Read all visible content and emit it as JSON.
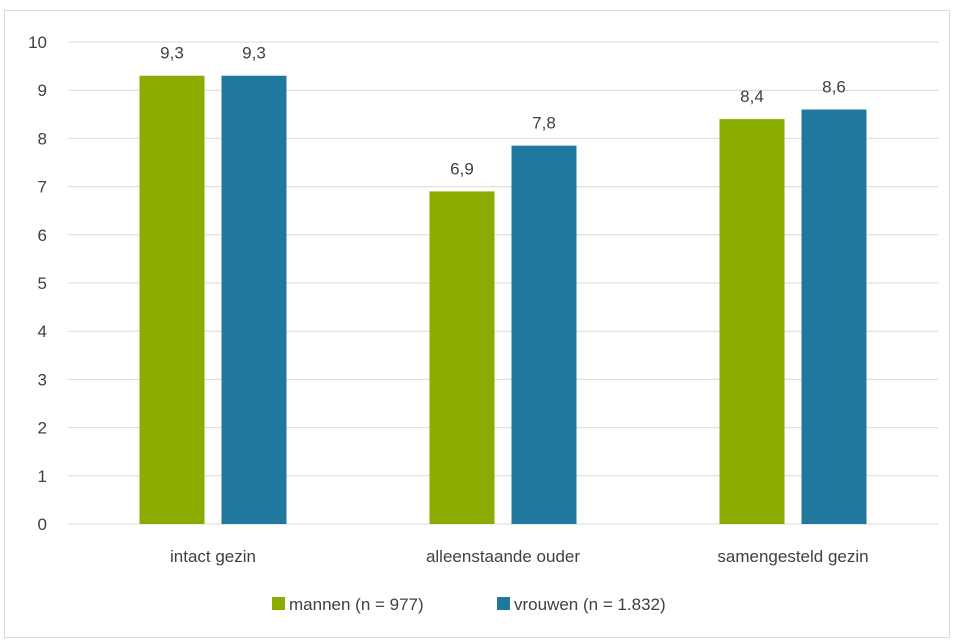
{
  "chart_data": {
    "type": "bar",
    "categories": [
      "intact gezin",
      "alleenstaande ouder",
      "samengesteld gezin"
    ],
    "series": [
      {
        "name": "mannen (n = 977)",
        "color": "#8aab00",
        "values": [
          9.3,
          6.9,
          8.4
        ],
        "labels": [
          "9,3",
          "6,9",
          "8,4"
        ]
      },
      {
        "name": "vrouwen (n = 1.832)",
        "color": "#21789e",
        "values": [
          9.3,
          7.85,
          8.6
        ],
        "labels": [
          "9,3",
          "7,8",
          "8,6"
        ]
      }
    ],
    "ylim": [
      0,
      10
    ],
    "yticks": [
      "0",
      "1",
      "2",
      "3",
      "4",
      "5",
      "6",
      "7",
      "8",
      "9",
      "10"
    ],
    "grid": true,
    "legend_position": "bottom",
    "gridline_color": "#d9d9d9"
  }
}
